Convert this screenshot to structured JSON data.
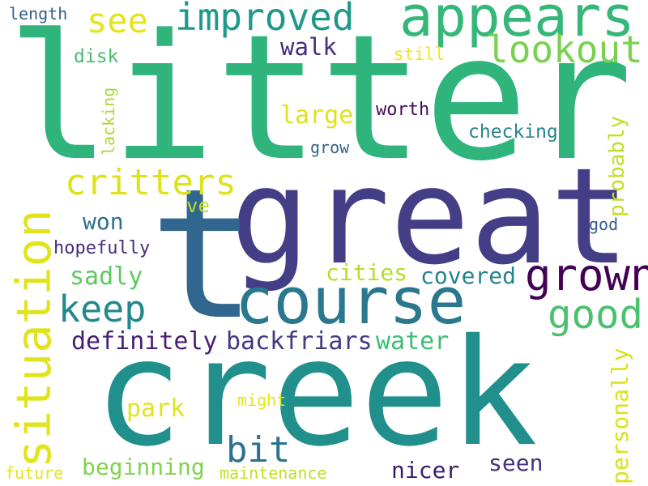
{
  "words": [
    {
      "text": "litter",
      "color": "#2fb47c",
      "rotation": 0
    },
    {
      "text": "great",
      "color": "#433e85",
      "rotation": 0
    },
    {
      "text": "creek",
      "color": "#21908d",
      "rotation": 0
    },
    {
      "text": "t",
      "color": "#31668e",
      "rotation": 0
    },
    {
      "text": "course",
      "color": "#2a788e",
      "rotation": 0
    },
    {
      "text": "appears",
      "color": "#35b779",
      "rotation": 0
    },
    {
      "text": "situation",
      "color": "#e1e41d",
      "rotation": -90
    },
    {
      "text": "grown",
      "color": "#440154",
      "rotation": 0
    },
    {
      "text": "improved",
      "color": "#1f988b",
      "rotation": 0
    },
    {
      "text": "lookout",
      "color": "#7ad151",
      "rotation": 0
    },
    {
      "text": "critters",
      "color": "#dde318",
      "rotation": 0
    },
    {
      "text": "keep",
      "color": "#23888e",
      "rotation": 0
    },
    {
      "text": "good",
      "color": "#4ac16d",
      "rotation": 0
    },
    {
      "text": "bit",
      "color": "#2c728e",
      "rotation": 0
    },
    {
      "text": "see",
      "color": "#e5e419",
      "rotation": 0
    },
    {
      "text": "definitely",
      "color": "#481f70",
      "rotation": 0
    },
    {
      "text": "backfriars",
      "color": "#453882",
      "rotation": 0
    },
    {
      "text": "water",
      "color": "#3dbc74",
      "rotation": 0
    },
    {
      "text": "walk",
      "color": "#472c7a",
      "rotation": 0
    },
    {
      "text": "large",
      "color": "#dfe318",
      "rotation": 0
    },
    {
      "text": "worth",
      "color": "#450b5a",
      "rotation": 0
    },
    {
      "text": "checking",
      "color": "#25838e",
      "rotation": 0
    },
    {
      "text": "probably",
      "color": "#c2df23",
      "rotation": -90
    },
    {
      "text": "personally",
      "color": "#d8e219",
      "rotation": -90
    },
    {
      "text": "cities",
      "color": "#b5de2b",
      "rotation": 0
    },
    {
      "text": "covered",
      "color": "#26828e",
      "rotation": 0
    },
    {
      "text": "won",
      "color": "#2d708e",
      "rotation": 0
    },
    {
      "text": "sadly",
      "color": "#5ec962",
      "rotation": 0
    },
    {
      "text": "park",
      "color": "#e0e418",
      "rotation": 0
    },
    {
      "text": "beginning",
      "color": "#7fd34e",
      "rotation": 0
    },
    {
      "text": "nicer",
      "color": "#3b1c6b",
      "rotation": 0
    },
    {
      "text": "seen",
      "color": "#46337e",
      "rotation": 0
    },
    {
      "text": "disk",
      "color": "#44bf70",
      "rotation": 0
    },
    {
      "text": "hopefully",
      "color": "#472d7b",
      "rotation": 0
    },
    {
      "text": "ve",
      "color": "#bddf26",
      "rotation": 0
    },
    {
      "text": "grow",
      "color": "#33638d",
      "rotation": 0
    },
    {
      "text": "god",
      "color": "#375a8c",
      "rotation": 0
    },
    {
      "text": "length",
      "color": "#355f8d",
      "rotation": 0
    },
    {
      "text": "lacking",
      "color": "#a8db34",
      "rotation": -90
    },
    {
      "text": "still",
      "color": "#f1e51d",
      "rotation": 0
    },
    {
      "text": "might",
      "color": "#e7e419",
      "rotation": 0
    },
    {
      "text": "future",
      "color": "#e5e419",
      "rotation": 0
    },
    {
      "text": "maintenance",
      "color": "#c0df25",
      "rotation": 0
    }
  ]
}
